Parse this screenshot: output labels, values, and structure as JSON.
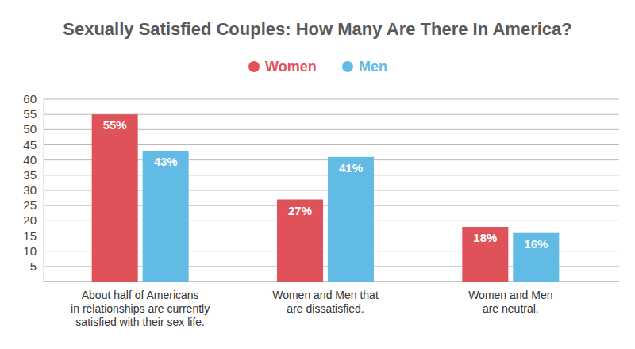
{
  "chart_data": {
    "type": "bar",
    "title": "Sexually Satisfied Couples: How Many Are There In America?",
    "categories": [
      "About half of Americans\nin relationships are currently\nsatisfied with their sex life.",
      "Women and Men that\nare dissatisfied.",
      "Women and Men\nare neutral."
    ],
    "series": [
      {
        "name": "Women",
        "color": "#e0525a",
        "values": [
          55,
          27,
          18
        ],
        "value_labels": [
          "55%",
          "27%",
          "18%"
        ]
      },
      {
        "name": "Men",
        "color": "#62bbe5",
        "values": [
          43,
          41,
          16
        ],
        "value_labels": [
          "43%",
          "41%",
          "16%"
        ]
      }
    ],
    "ylim": [
      0,
      60
    ],
    "yticks": [
      5,
      10,
      15,
      20,
      25,
      30,
      35,
      40,
      45,
      50,
      55,
      60
    ],
    "grid": true,
    "legend": "top",
    "data_labels": true
  }
}
